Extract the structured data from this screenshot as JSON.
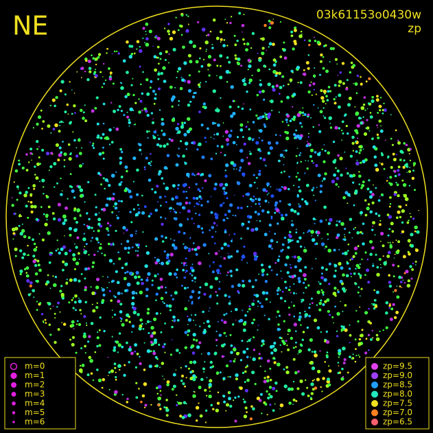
{
  "header": {
    "direction": "NE",
    "image_id": "03k61153o0430w",
    "mode": "zp"
  },
  "legend_magnitude": {
    "entries": [
      "m=0",
      "m=1",
      "m=2",
      "m=3",
      "m=4",
      "m=5",
      "m=6"
    ],
    "color": "#e020e0"
  },
  "legend_zp": {
    "entries": [
      {
        "label": "zp=9.5",
        "color": "#e040f0"
      },
      {
        "label": "zp=9.0",
        "color": "#a040ff"
      },
      {
        "label": "zp=8.5",
        "color": "#20a0ff"
      },
      {
        "label": "zp=8.0",
        "color": "#20e8c0"
      },
      {
        "label": "zp=7.5",
        "color": "#f0e020"
      },
      {
        "label": "zp=7.0",
        "color": "#ff8020"
      },
      {
        "label": "zp=6.5",
        "color": "#ff6070"
      }
    ]
  }
}
